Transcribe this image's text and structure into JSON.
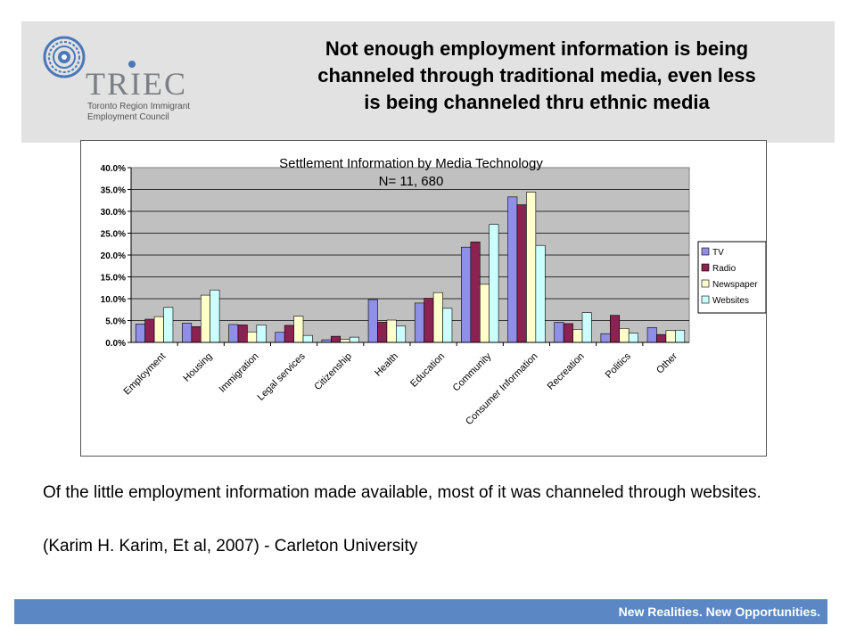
{
  "slide": {
    "title": "Not enough employment information is being\nchanneled through  traditional media, even less\nis being channeled thru ethnic media",
    "note": "Of the little employment information made available, most of it was channeled through websites.",
    "citation": "(Karim H. Karim, Et al, 2007) - Carleton University",
    "footer": "New Realities. New Opportunities."
  },
  "logo": {
    "wordmark": "TRIEC",
    "line1": "Toronto Region Immigrant",
    "line2": "Employment Council",
    "color": "#4a78b8"
  },
  "chart_data": {
    "type": "bar",
    "title": "Settlement Information by Media Technology",
    "subtitle": "N= 11, 680",
    "xlabel": "",
    "ylabel": "",
    "ylim": [
      0,
      40
    ],
    "yticks": [
      "0.0%",
      "5.0%",
      "10.0%",
      "15.0%",
      "20.0%",
      "25.0%",
      "30.0%",
      "35.0%",
      "40.0%"
    ],
    "grid": true,
    "legend_position": "right",
    "categories": [
      "Employment",
      "Housing",
      "Immigration",
      "Legal services",
      "Citizenship",
      "Health",
      "Education",
      "Community",
      "Consumer Information",
      "Recreation",
      "Politics",
      "Other"
    ],
    "series": [
      {
        "name": "TV",
        "color": "#8f8fe8",
        "values": [
          4.2,
          4.4,
          4.1,
          2.3,
          0.6,
          9.8,
          9.0,
          21.8,
          33.3,
          4.6,
          2.0,
          3.4
        ]
      },
      {
        "name": "Radio",
        "color": "#8b2252",
        "values": [
          5.3,
          3.6,
          4.0,
          3.9,
          1.4,
          4.6,
          10.1,
          23.0,
          31.5,
          4.3,
          6.2,
          1.8
        ]
      },
      {
        "name": "Newspaper",
        "color": "#ffffcc",
        "values": [
          5.9,
          10.8,
          2.4,
          6.0,
          0.7,
          5.1,
          11.4,
          13.3,
          34.4,
          3.0,
          3.2,
          2.7
        ]
      },
      {
        "name": "Websites",
        "color": "#ccffff",
        "values": [
          8.0,
          12.0,
          4.0,
          1.6,
          1.2,
          3.8,
          7.8,
          27.0,
          22.2,
          6.8,
          2.1,
          2.8
        ]
      }
    ]
  }
}
